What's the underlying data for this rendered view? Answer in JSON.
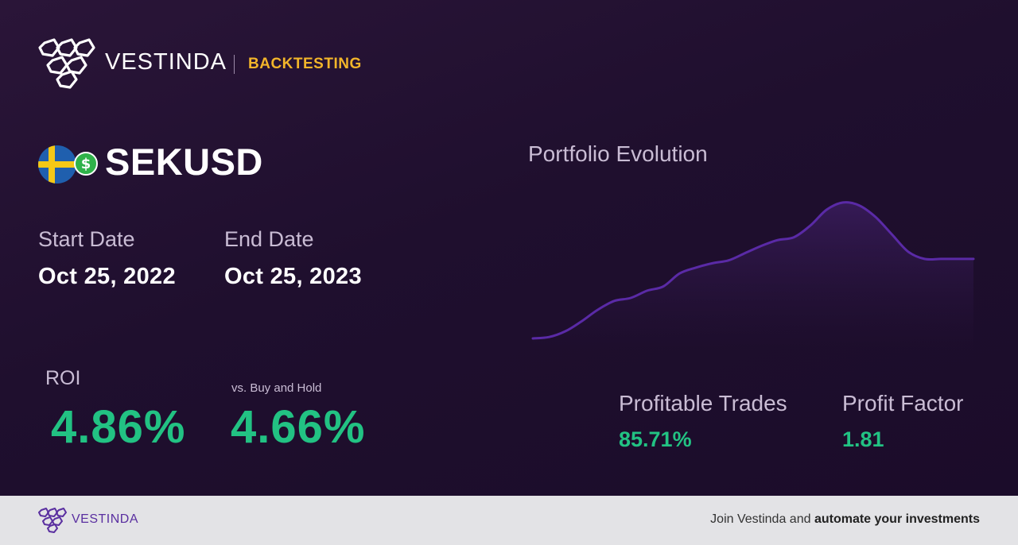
{
  "header": {
    "brand": "VESTINDA",
    "section": "BACKTESTING",
    "logo_icon": "hexagon-cluster-logo"
  },
  "asset": {
    "pair": "SEKUSD",
    "flag_icon": "sweden-flag-icon",
    "currency_icon": "dollar-coin-icon"
  },
  "dates": {
    "start_label": "Start Date",
    "start_value": "Oct 25, 2022",
    "end_label": "End Date",
    "end_value": "Oct 25, 2023"
  },
  "performance": {
    "roi_label": "ROI",
    "roi_value": "4.86%",
    "bh_label": "vs. Buy and Hold",
    "bh_value": "4.66%"
  },
  "chart_title": "Portfolio Evolution",
  "chart_data": {
    "type": "area",
    "title": "Portfolio Evolution",
    "xlabel": "",
    "ylabel": "",
    "grid": false,
    "legend": "none",
    "x": [
      0,
      1,
      2,
      3,
      4,
      5,
      6,
      7,
      8,
      9,
      10,
      11,
      12,
      13,
      14,
      15,
      16,
      17,
      18,
      19,
      20,
      21,
      22,
      23,
      24,
      25,
      26,
      27
    ],
    "series": [
      {
        "values": [
          0,
          1,
          5,
          12,
          20,
          26,
          28,
          33,
          36,
          45,
          49,
          52,
          54,
          59,
          64,
          68,
          70,
          78,
          89,
          94,
          92,
          84,
          72,
          60,
          55,
          55,
          55,
          55
        ]
      }
    ],
    "ylim": [
      0,
      100
    ],
    "colors": {
      "line": "#5a2aa6",
      "fill": "#3a1c5e"
    }
  },
  "stats": {
    "profitable_label": "Profitable Trades",
    "profitable_value": "85.71%",
    "factor_label": "Profit Factor",
    "factor_value": "1.81"
  },
  "footer": {
    "brand": "VESTINDA",
    "cta_prefix": "Join Vestinda and ",
    "cta_bold": "automate your investments"
  },
  "colors": {
    "accent": "#f2b52a",
    "positive": "#22c283",
    "brand_purple": "#5a2fa0",
    "background": "#1f0f2e"
  }
}
